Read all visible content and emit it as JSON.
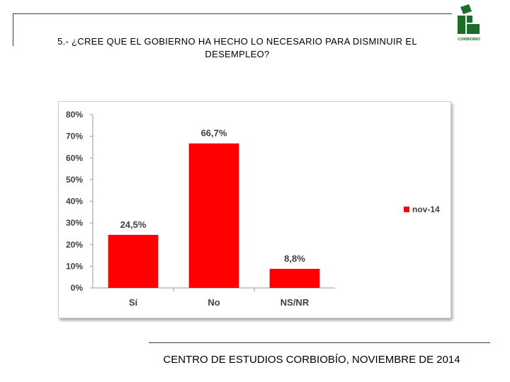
{
  "header": {
    "title_line1": "5.- ¿CREE QUE EL GOBIERNO HA HECHO LO NECESARIO PARA DISMINUIR EL",
    "title_line2": "DESEMPLEO?",
    "logo_label": "CORBIOBIO"
  },
  "chart_data": {
    "type": "bar",
    "categories": [
      "Sí",
      "No",
      "NS/NR"
    ],
    "series": [
      {
        "name": "nov-14",
        "values": [
          24.5,
          66.7,
          8.8
        ],
        "color": "#ff0000"
      }
    ],
    "data_labels": [
      "24,5%",
      "66,7%",
      "8,8%"
    ],
    "ytick_labels": [
      "0%",
      "10%",
      "20%",
      "30%",
      "40%",
      "50%",
      "60%",
      "70%",
      "80%"
    ],
    "ylim": [
      0,
      80
    ],
    "title": "",
    "xlabel": "",
    "ylabel": "",
    "legend_position": "right",
    "grid": false
  },
  "footer": {
    "text": "CENTRO DE ESTUDIOS CORBIOBÍO, NOVIEMBRE DE 2014"
  },
  "colors": {
    "bar": "#ff0000",
    "frame": "#2e4a2e",
    "logo": "#1e6b2a"
  }
}
